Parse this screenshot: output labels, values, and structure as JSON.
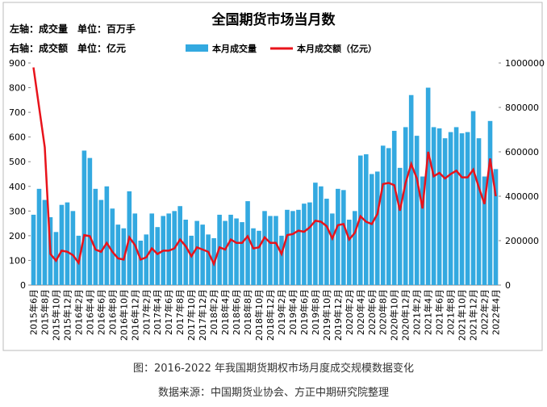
{
  "chart_data": {
    "type": "bar-line",
    "title": "全国期货市场当月数",
    "left_axis_note": "左轴：成交量　单位：百万手",
    "right_axis_note": "右轴：成交额　单位：亿元",
    "categories": [
      "2015年6月",
      null,
      "2015年8月",
      null,
      "2015年10月",
      null,
      "2015年12月",
      null,
      "2016年2月",
      null,
      "2016年4月",
      null,
      "2016年6月",
      null,
      "2016年8月",
      null,
      "2016年10月",
      null,
      "2016年12月",
      null,
      "2017年2月",
      null,
      "2017年4月",
      null,
      "2017年6月",
      null,
      "2017年8月",
      null,
      "2017年10月",
      null,
      "2017年12月",
      null,
      "2018年2月",
      null,
      "2018年4月",
      null,
      "2018年6月",
      null,
      "2018年8月",
      null,
      "2018年10月",
      null,
      "2018年12月",
      null,
      "2019年2月",
      null,
      "2019年4月",
      null,
      "2019年6月",
      null,
      "2019年8月",
      null,
      "2019年10月",
      null,
      "2019年12月",
      null,
      "2020年2月",
      null,
      "2020年4月",
      null,
      "2020年6月",
      null,
      "2020年8月",
      null,
      "2020年10月",
      null,
      "2020年12月",
      null,
      "2021年2月",
      null,
      "2021年4月",
      null,
      "2021年6月",
      null,
      "2021年8月",
      null,
      "2021年10月",
      null,
      "2021年12月",
      null,
      "2022年2月",
      null,
      "2022年4月"
    ],
    "series": [
      {
        "name": "本月成交量",
        "color": "#33a9e0",
        "kind": "bar",
        "values": [
          285,
          390,
          345,
          275,
          215,
          325,
          335,
          300,
          200,
          545,
          515,
          390,
          345,
          400,
          310,
          245,
          230,
          380,
          290,
          180,
          205,
          290,
          235,
          280,
          290,
          300,
          320,
          265,
          200,
          260,
          245,
          205,
          190,
          285,
          260,
          285,
          270,
          255,
          340,
          230,
          220,
          300,
          280,
          280,
          200,
          305,
          300,
          305,
          330,
          335,
          415,
          400,
          350,
          290,
          390,
          385,
          265,
          300,
          525,
          530,
          450,
          460,
          565,
          555,
          625,
          475,
          640,
          770,
          605,
          440,
          800,
          640,
          635,
          595,
          620,
          640,
          615,
          620,
          705,
          595,
          440,
          665,
          470
        ]
      },
      {
        "name": "本月成交额（亿元）",
        "color": "#e8131b",
        "kind": "line",
        "axis": "y2",
        "values": [
          980000,
          800000,
          620000,
          140000,
          110000,
          155000,
          150000,
          135000,
          100000,
          225000,
          220000,
          160000,
          150000,
          190000,
          150000,
          120000,
          115000,
          215000,
          180000,
          115000,
          125000,
          165000,
          140000,
          155000,
          155000,
          165000,
          205000,
          175000,
          130000,
          170000,
          160000,
          150000,
          95000,
          170000,
          160000,
          205000,
          190000,
          190000,
          220000,
          165000,
          170000,
          215000,
          190000,
          190000,
          140000,
          225000,
          230000,
          245000,
          240000,
          260000,
          290000,
          285000,
          265000,
          210000,
          270000,
          275000,
          205000,
          235000,
          310000,
          285000,
          275000,
          320000,
          455000,
          460000,
          450000,
          335000,
          460000,
          545000,
          480000,
          345000,
          600000,
          490000,
          505000,
          480000,
          500000,
          515000,
          485000,
          485000,
          520000,
          440000,
          365000,
          570000,
          400000
        ]
      }
    ],
    "ylim": [
      0,
      900
    ],
    "yticks": [
      0,
      100,
      200,
      300,
      400,
      500,
      600,
      700,
      800,
      900
    ],
    "y2lim": [
      0,
      1000000
    ],
    "y2ticks": [
      0,
      200000,
      400000,
      600000,
      800000,
      1000000
    ],
    "grid": false
  },
  "captions": [
    "图：2016-2022 年我国期货期权市场月度成交规模数据变化",
    "数据来源：中国期货业协会、方正中期研究院整理"
  ]
}
